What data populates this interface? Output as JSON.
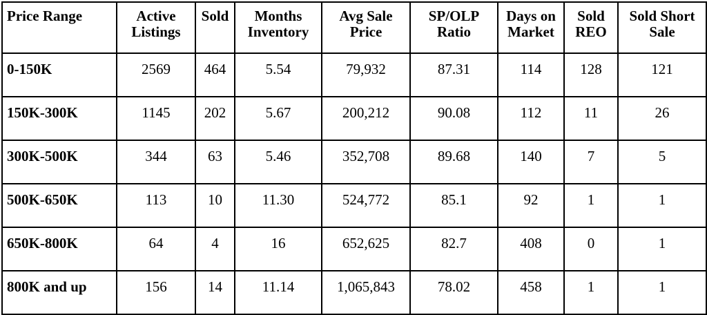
{
  "table": {
    "headers": [
      "Price Range",
      "Active Listings",
      "Sold",
      "Months Inventory",
      "Avg Sale Price",
      "SP/OLP Ratio",
      "Days on Market",
      "Sold REO",
      "Sold Short Sale"
    ],
    "rows": [
      [
        "0-150K",
        "2569",
        "464",
        "5.54",
        "79,932",
        "87.31",
        "114",
        "128",
        "121"
      ],
      [
        "150K-300K",
        "1145",
        "202",
        "5.67",
        "200,212",
        "90.08",
        "112",
        "11",
        "26"
      ],
      [
        "300K-500K",
        "344",
        "63",
        "5.46",
        "352,708",
        "89.68",
        "140",
        "7",
        "5"
      ],
      [
        "500K-650K",
        "113",
        "10",
        "11.30",
        "524,772",
        "85.1",
        "92",
        "1",
        "1"
      ],
      [
        "650K-800K",
        "64",
        "4",
        "16",
        "652,625",
        "82.7",
        "408",
        "0",
        "1"
      ],
      [
        "800K and up",
        "156",
        "14",
        "11.14",
        "1,065,843",
        "78.02",
        "458",
        "1",
        "1"
      ]
    ]
  }
}
